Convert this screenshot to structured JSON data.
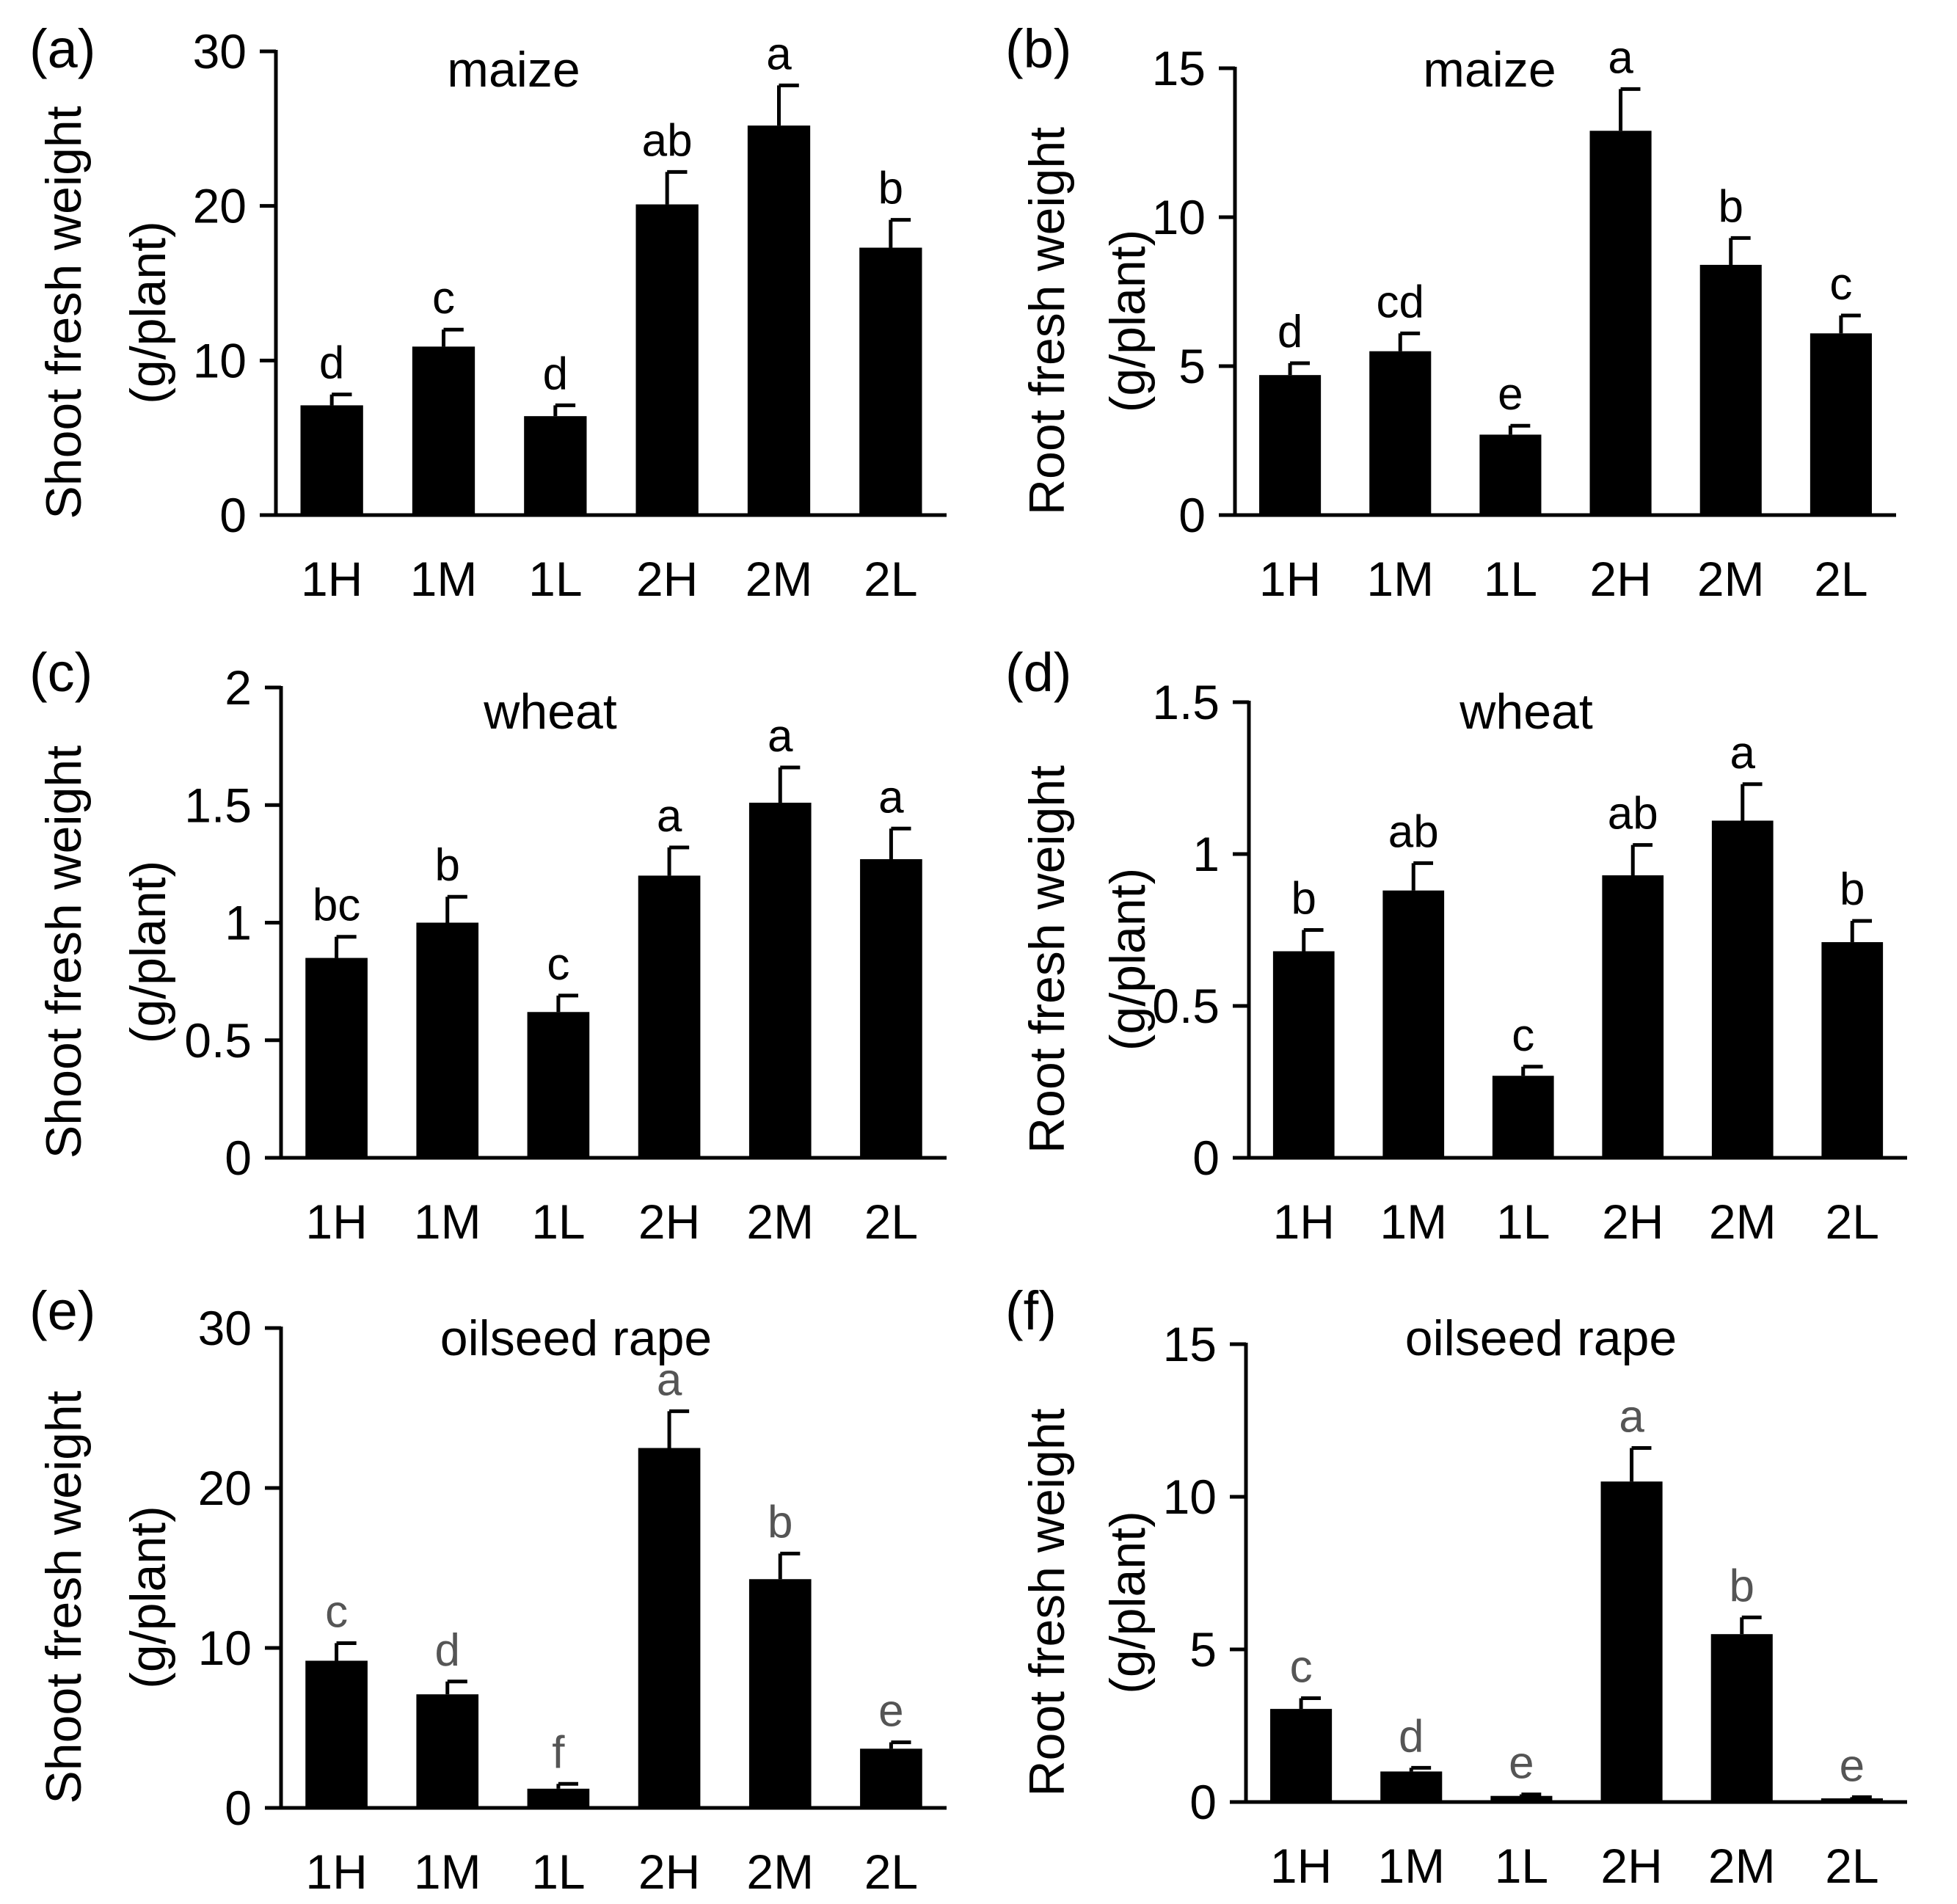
{
  "chart_data": [
    {
      "panel": "(a)",
      "type": "bar",
      "title": "maize",
      "ylabel": [
        "Shoot fresh weight",
        "(g/plant)"
      ],
      "categories": [
        "1H",
        "1M",
        "1L",
        "2H",
        "2M",
        "2L"
      ],
      "values": [
        7.1,
        10.9,
        6.4,
        20.1,
        25.2,
        17.3
      ],
      "errors": [
        0.7,
        1.1,
        0.7,
        2.1,
        2.6,
        1.8
      ],
      "letters": [
        "d",
        "c",
        "d",
        "ab",
        "a",
        "b"
      ],
      "ylim": [
        0,
        30
      ],
      "yticks": [
        "0",
        "10",
        "20",
        "30"
      ],
      "letter_color": "#000000"
    },
    {
      "panel": "(b)",
      "type": "bar",
      "title": "maize",
      "ylabel": [
        "Root fresh weight",
        "(g/plant)"
      ],
      "categories": [
        "1H",
        "1M",
        "1L",
        "2H",
        "2M",
        "2L"
      ],
      "values": [
        4.7,
        5.5,
        2.7,
        12.9,
        8.4,
        6.1
      ],
      "errors": [
        0.4,
        0.6,
        0.3,
        1.4,
        0.9,
        0.6
      ],
      "letters": [
        "d",
        "cd",
        "e",
        "a",
        "b",
        "c"
      ],
      "ylim": [
        0,
        15
      ],
      "yticks": [
        "0",
        "5",
        "10",
        "15"
      ],
      "letter_color": "#000000"
    },
    {
      "panel": "(c)",
      "type": "bar",
      "title": "wheat",
      "ylabel": [
        "Shoot fresh weight",
        "(g/plant)"
      ],
      "categories": [
        "1H",
        "1M",
        "1L",
        "2H",
        "2M",
        "2L"
      ],
      "values": [
        0.85,
        1.0,
        0.62,
        1.2,
        1.51,
        1.27
      ],
      "errors": [
        0.09,
        0.11,
        0.07,
        0.12,
        0.15,
        0.13
      ],
      "letters": [
        "bc",
        "b",
        "c",
        "a",
        "a",
        "a"
      ],
      "ylim": [
        0,
        2
      ],
      "yticks": [
        "0",
        "0.5",
        "1",
        "1.5",
        "2"
      ],
      "letter_color": "#000000"
    },
    {
      "panel": "(d)",
      "type": "bar",
      "title": "wheat",
      "ylabel": [
        "Root fresh weight",
        "(g/plant)"
      ],
      "categories": [
        "1H",
        "1M",
        "1L",
        "2H",
        "2M",
        "2L"
      ],
      "values": [
        0.68,
        0.88,
        0.27,
        0.93,
        1.11,
        0.71
      ],
      "errors": [
        0.07,
        0.09,
        0.03,
        0.1,
        0.12,
        0.07
      ],
      "letters": [
        "b",
        "ab",
        "c",
        "ab",
        "a",
        "b"
      ],
      "ylim": [
        0,
        1.5
      ],
      "yticks": [
        "0",
        "0.5",
        "1",
        "1.5"
      ],
      "letter_color": "#000000"
    },
    {
      "panel": "(e)",
      "type": "bar",
      "title": "oilseed rape",
      "ylabel": [
        "Shoot fresh weight",
        "(g/plant)"
      ],
      "categories": [
        "1H",
        "1M",
        "1L",
        "2H",
        "2M",
        "2L"
      ],
      "values": [
        9.2,
        7.1,
        1.2,
        22.5,
        14.3,
        3.7
      ],
      "errors": [
        1.1,
        0.8,
        0.3,
        2.3,
        1.6,
        0.4
      ],
      "letters": [
        "c",
        "d",
        "f",
        "a",
        "b",
        "e"
      ],
      "ylim": [
        0,
        30
      ],
      "yticks": [
        "0",
        "10",
        "20",
        "30"
      ],
      "letter_color": "#555555"
    },
    {
      "panel": "(f)",
      "type": "bar",
      "title": "oilseed rape",
      "ylabel": [
        "Root fresh weight",
        "(g/plant)"
      ],
      "categories": [
        "1H",
        "1M",
        "1L",
        "2H",
        "2M",
        "2L"
      ],
      "values": [
        3.05,
        1.0,
        0.2,
        10.5,
        5.5,
        0.12
      ],
      "errors": [
        0.35,
        0.12,
        0.05,
        1.1,
        0.55,
        0.04
      ],
      "letters": [
        "c",
        "d",
        "e",
        "a",
        "b",
        "e"
      ],
      "ylim": [
        0,
        15
      ],
      "yticks": [
        "0",
        "5",
        "10",
        "15"
      ],
      "letter_color": "#555555"
    }
  ]
}
